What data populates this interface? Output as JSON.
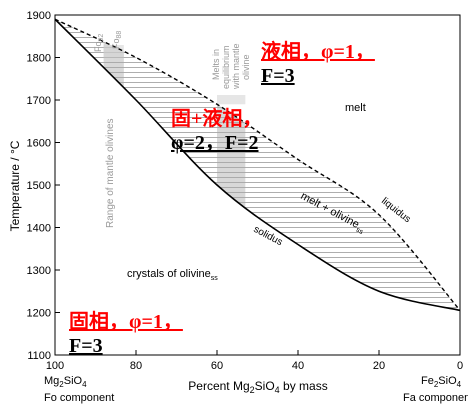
{
  "chart_data": {
    "type": "phase-diagram",
    "ylabel": "Temperature / °C",
    "xlabel": "Percent Mg2SiO4 by mass",
    "ylim": [
      1100,
      1900
    ],
    "xlim": [
      100,
      0
    ],
    "yticks": [
      "1100",
      "1200",
      "1300",
      "1400",
      "1500",
      "1600",
      "1700",
      "1800",
      "1900"
    ],
    "xticks": [
      "100",
      "80",
      "60",
      "40",
      "20",
      "0"
    ],
    "endmember_left": {
      "formula_main": "Mg",
      "formula_sub1": "2",
      "formula_tail": "SiO",
      "formula_sub2": "4",
      "component": "Fo component"
    },
    "endmember_right": {
      "formula_main": "Fe",
      "formula_sub1": "2",
      "formula_tail": "SiO",
      "formula_sub2": "4",
      "component": "Fa component"
    },
    "liquidus": [
      [
        100,
        1890
      ],
      [
        80,
        1800
      ],
      [
        60,
        1690
      ],
      [
        40,
        1560
      ],
      [
        20,
        1430
      ],
      [
        0,
        1205
      ]
    ],
    "solidus": [
      [
        100,
        1890
      ],
      [
        80,
        1700
      ],
      [
        60,
        1500
      ],
      [
        40,
        1360
      ],
      [
        20,
        1250
      ],
      [
        0,
        1205
      ]
    ],
    "region_labels": {
      "melt": "melt",
      "melt_olivine_main": "melt + olivine",
      "melt_olivine_sub": "ss",
      "crystals_main": "crystals of olivine",
      "crystals_sub": "ss",
      "liquidus": "liquidus",
      "solidus": "solidus"
    },
    "shaded_bands": {
      "mantle": {
        "label": "Range of mantle olivines",
        "range": [
          88,
          83
        ]
      },
      "melts": {
        "label_lines": [
          "Melts in",
          "equilibrium",
          "with mantle",
          "olivine"
        ],
        "range": [
          60,
          53
        ]
      }
    },
    "compositions": {
      "fo92_main": "Fo",
      "fo92_sub": "92",
      "fo88_main": "Fo",
      "fo88_sub": "88"
    }
  },
  "annotations": {
    "liquid": {
      "line1": "液相，φ=1，",
      "line2": "F=3"
    },
    "two_phase": {
      "line1": "固+液相，",
      "line2": "φ=2，F=2"
    },
    "solid": {
      "line1": "固相，φ=1，",
      "line2": "F=3"
    }
  },
  "colors": {
    "annotation_red": "#ff0000",
    "shade": "#a8a8a8",
    "hatch": "#999999"
  }
}
